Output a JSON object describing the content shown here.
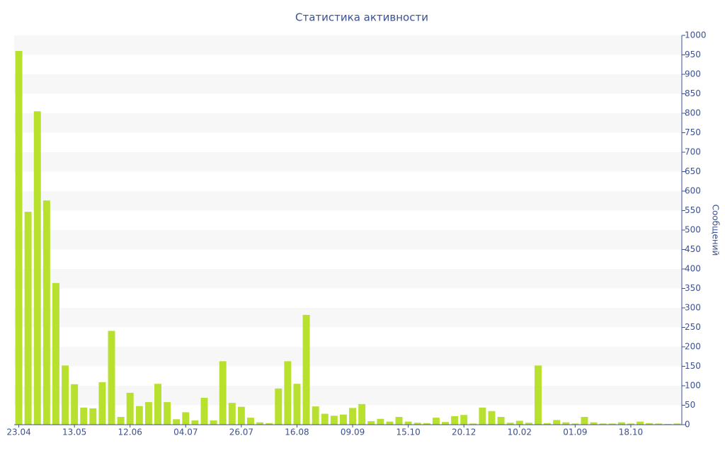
{
  "chart_data": {
    "type": "bar",
    "title": "Статистика активности",
    "y_label": "Сообщений",
    "categories": [
      "23.04",
      null,
      null,
      null,
      null,
      null,
      "13.05",
      null,
      null,
      null,
      null,
      null,
      "12.06",
      null,
      null,
      null,
      null,
      null,
      "04.07",
      null,
      null,
      null,
      null,
      null,
      "26.07",
      null,
      null,
      null,
      null,
      null,
      "16.08",
      null,
      null,
      null,
      null,
      null,
      "09.09",
      null,
      null,
      null,
      null,
      null,
      "15.10",
      null,
      null,
      null,
      null,
      null,
      "20.12",
      null,
      null,
      null,
      null,
      null,
      "10.02",
      null,
      null,
      null,
      null,
      null,
      "01.09",
      null,
      null,
      null,
      null,
      null,
      "18.10",
      null,
      null,
      null,
      null,
      null
    ],
    "values": [
      960,
      547,
      805,
      576,
      364,
      152,
      104,
      44,
      42,
      109,
      241,
      20,
      82,
      48,
      58,
      105,
      58,
      14,
      32,
      11,
      69,
      11,
      163,
      56,
      46,
      18,
      6,
      4,
      93,
      163,
      105,
      282,
      47,
      28,
      23,
      26,
      43,
      53,
      9,
      15,
      8,
      20,
      8,
      5,
      4,
      18,
      7,
      22,
      25,
      3,
      44,
      35,
      20,
      5,
      10,
      5,
      152,
      4,
      12,
      6,
      3,
      20,
      6,
      3,
      3,
      6,
      3,
      8,
      4,
      3,
      2,
      3
    ],
    "color": "#b7e02f",
    "ylim": [
      0,
      1000
    ],
    "yticks": [
      0,
      50,
      100,
      150,
      200,
      250,
      300,
      350,
      400,
      450,
      500,
      550,
      600,
      650,
      700,
      750,
      800,
      850,
      900,
      950,
      1000
    ],
    "grid": true,
    "y_axis_side": "right"
  }
}
